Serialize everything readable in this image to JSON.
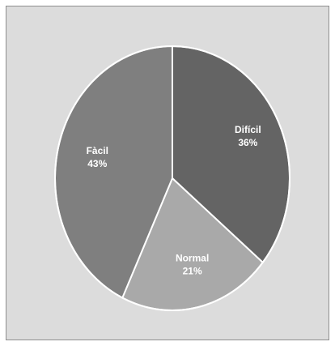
{
  "chart_data": {
    "type": "pie",
    "title": "",
    "slices": [
      {
        "category": "Difícil",
        "value": 36,
        "label_value": "36%",
        "color": "#646464"
      },
      {
        "category": "Normal",
        "value": 21,
        "label_value": "21%",
        "color": "#a9a9a9"
      },
      {
        "category": "Fàcil",
        "value": 43,
        "label_value": "43%",
        "color": "#7f7f7f"
      }
    ],
    "slice_border_color": "#ffffff",
    "background_color": "#dcdcdc",
    "border_color": "#8f8f8f",
    "legend": "none",
    "data_labels": "category and percentage, inside slices"
  }
}
